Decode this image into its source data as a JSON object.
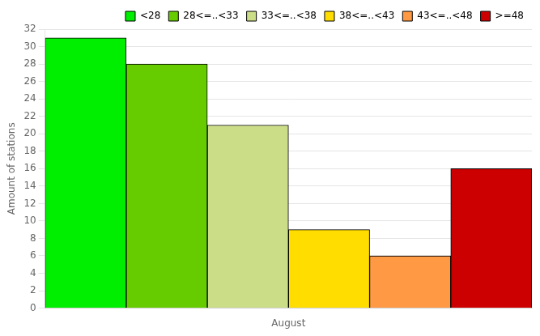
{
  "chart_data": {
    "type": "bar",
    "categories": [
      "<28",
      "28<=..<33",
      "33<=..<38",
      "38<=..<43",
      "43<=..<48",
      ">=48"
    ],
    "values": [
      31,
      28,
      21,
      9,
      6,
      16
    ],
    "colors": [
      "#00ee00",
      "#66cc00",
      "#ccdd88",
      "#ffdd00",
      "#ff9944",
      "#cc0000"
    ],
    "xlabel": "August",
    "ylabel": "Amount of stations",
    "ylim": [
      0,
      32
    ],
    "yticks": [
      0,
      2,
      4,
      6,
      8,
      10,
      12,
      14,
      16,
      18,
      20,
      22,
      24,
      26,
      28,
      30,
      32
    ],
    "grid": true,
    "legend": "upper right",
    "tick_labels": "y"
  }
}
